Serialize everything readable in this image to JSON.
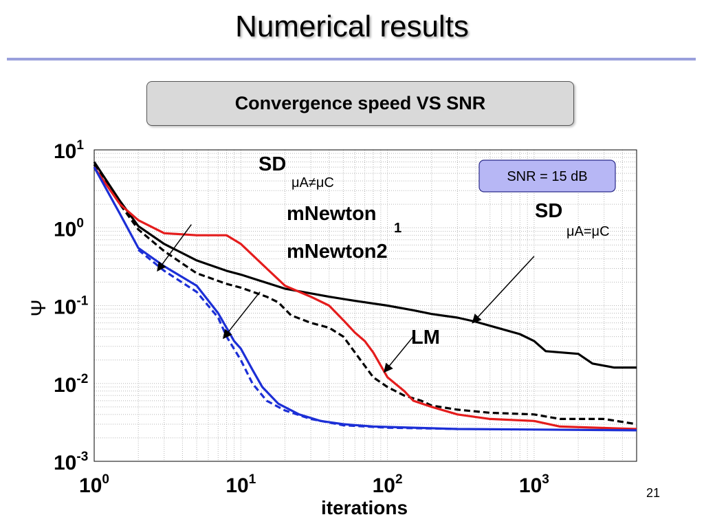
{
  "slide": {
    "title": "Numerical results",
    "subtitle": "Convergence speed VS SNR",
    "page_number": "21"
  },
  "chart_data": {
    "type": "line",
    "xlabel": "iterations",
    "ylabel": "Ψ",
    "x_scale": "log",
    "y_scale": "log",
    "xlim": [
      1,
      5000
    ],
    "ylim": [
      0.001,
      10
    ],
    "x_ticks": [
      {
        "value": 1,
        "base": "10",
        "exp": "0"
      },
      {
        "value": 10,
        "base": "10",
        "exp": "1"
      },
      {
        "value": 100,
        "base": "10",
        "exp": "2"
      },
      {
        "value": 1000,
        "base": "10",
        "exp": "3"
      }
    ],
    "y_ticks": [
      {
        "value": 10,
        "base": "10",
        "exp": "1"
      },
      {
        "value": 1,
        "base": "10",
        "exp": "0"
      },
      {
        "value": 0.1,
        "base": "10",
        "exp": "-1"
      },
      {
        "value": 0.01,
        "base": "10",
        "exp": "-2"
      },
      {
        "value": 0.001,
        "base": "10",
        "exp": "-3"
      }
    ],
    "grid": true,
    "snr_label": "SNR = 15 dB",
    "series": [
      {
        "key": "sd_mismatch",
        "color": "#000000",
        "dashed": false,
        "points": [
          [
            1,
            7.0
          ],
          [
            1.5,
            2.2
          ],
          [
            2,
            1.05
          ],
          [
            3,
            0.62
          ],
          [
            5,
            0.38
          ],
          [
            8,
            0.28
          ],
          [
            10,
            0.25
          ],
          [
            20,
            0.165
          ],
          [
            40,
            0.13
          ],
          [
            60,
            0.115
          ],
          [
            100,
            0.1
          ],
          [
            150,
            0.087
          ],
          [
            200,
            0.078
          ],
          [
            300,
            0.07
          ],
          [
            400,
            0.062
          ],
          [
            600,
            0.05
          ],
          [
            800,
            0.043
          ],
          [
            1000,
            0.035
          ],
          [
            1200,
            0.026
          ],
          [
            2000,
            0.024
          ],
          [
            2500,
            0.018
          ],
          [
            3500,
            0.016
          ],
          [
            5000,
            0.016
          ]
        ]
      },
      {
        "key": "sd_mismatch_dashed",
        "color": "#000000",
        "dashed": true,
        "points": [
          [
            1,
            6.5
          ],
          [
            1.5,
            2.0
          ],
          [
            2,
            0.95
          ],
          [
            3,
            0.5
          ],
          [
            5,
            0.26
          ],
          [
            8,
            0.19
          ],
          [
            10,
            0.17
          ],
          [
            15,
            0.13
          ],
          [
            18,
            0.11
          ],
          [
            22,
            0.075
          ],
          [
            30,
            0.06
          ],
          [
            40,
            0.052
          ],
          [
            50,
            0.04
          ],
          [
            60,
            0.025
          ],
          [
            80,
            0.012
          ],
          [
            100,
            0.009
          ],
          [
            130,
            0.007
          ],
          [
            170,
            0.006
          ],
          [
            200,
            0.0052
          ],
          [
            300,
            0.0046
          ],
          [
            500,
            0.0042
          ],
          [
            1000,
            0.004
          ],
          [
            1500,
            0.0035
          ],
          [
            3000,
            0.0035
          ],
          [
            5000,
            0.003
          ]
        ]
      },
      {
        "key": "red",
        "color": "#e41c1c",
        "dashed": false,
        "points": [
          [
            1,
            6.0
          ],
          [
            1.5,
            2.0
          ],
          [
            2,
            1.25
          ],
          [
            3,
            0.85
          ],
          [
            5,
            0.8
          ],
          [
            8,
            0.8
          ],
          [
            10,
            0.62
          ],
          [
            15,
            0.3
          ],
          [
            20,
            0.18
          ],
          [
            30,
            0.13
          ],
          [
            40,
            0.1
          ],
          [
            50,
            0.065
          ],
          [
            60,
            0.045
          ],
          [
            70,
            0.035
          ],
          [
            80,
            0.025
          ],
          [
            100,
            0.012
          ],
          [
            130,
            0.008
          ],
          [
            150,
            0.006
          ],
          [
            200,
            0.005
          ],
          [
            300,
            0.004
          ],
          [
            500,
            0.0035
          ],
          [
            1000,
            0.0033
          ],
          [
            1500,
            0.0028
          ],
          [
            5000,
            0.0026
          ]
        ]
      },
      {
        "key": "blue",
        "color": "#1c2fd6",
        "dashed": false,
        "points": [
          [
            1,
            6.0
          ],
          [
            1.5,
            1.5
          ],
          [
            2,
            0.55
          ],
          [
            3,
            0.32
          ],
          [
            5,
            0.18
          ],
          [
            7,
            0.08
          ],
          [
            9,
            0.035
          ],
          [
            10,
            0.028
          ],
          [
            12,
            0.015
          ],
          [
            14,
            0.009
          ],
          [
            18,
            0.0055
          ],
          [
            25,
            0.004
          ],
          [
            35,
            0.0033
          ],
          [
            50,
            0.003
          ],
          [
            80,
            0.0028
          ],
          [
            150,
            0.0027
          ],
          [
            300,
            0.0026
          ],
          [
            5000,
            0.0025
          ]
        ]
      },
      {
        "key": "blue_dashed",
        "color": "#1c2fd6",
        "dashed": true,
        "points": [
          [
            2,
            0.52
          ],
          [
            3,
            0.28
          ],
          [
            5,
            0.15
          ],
          [
            7,
            0.07
          ],
          [
            8,
            0.04
          ],
          [
            10,
            0.02
          ],
          [
            12,
            0.01
          ],
          [
            15,
            0.006
          ],
          [
            20,
            0.0045
          ],
          [
            30,
            0.0035
          ],
          [
            50,
            0.0029
          ],
          [
            100,
            0.0027
          ],
          [
            300,
            0.0026
          ]
        ]
      }
    ],
    "annotations": [
      {
        "key": "sd_mismatch",
        "label": "SD",
        "subscript": "μA≠μC",
        "arrow_from": [
          4.6,
          1.1
        ],
        "arrow_to": [
          2.7,
          0.28
        ]
      },
      {
        "key": "mnewton1",
        "label": "mNewton",
        "subscript": "1"
      },
      {
        "key": "mnewton2",
        "label": "mNewton2",
        "arrow_from": [
          13.5,
          0.15
        ],
        "arrow_to": [
          7.6,
          0.038
        ]
      },
      {
        "key": "sd_match",
        "label": "SD",
        "subscript": "μA=μC",
        "arrow_from": [
          1000,
          0.43
        ],
        "arrow_to": [
          380,
          0.06
        ]
      },
      {
        "key": "lm",
        "label": "LM",
        "arrow_from": [
          150,
          0.04
        ],
        "arrow_to": [
          95,
          0.014
        ]
      }
    ]
  }
}
